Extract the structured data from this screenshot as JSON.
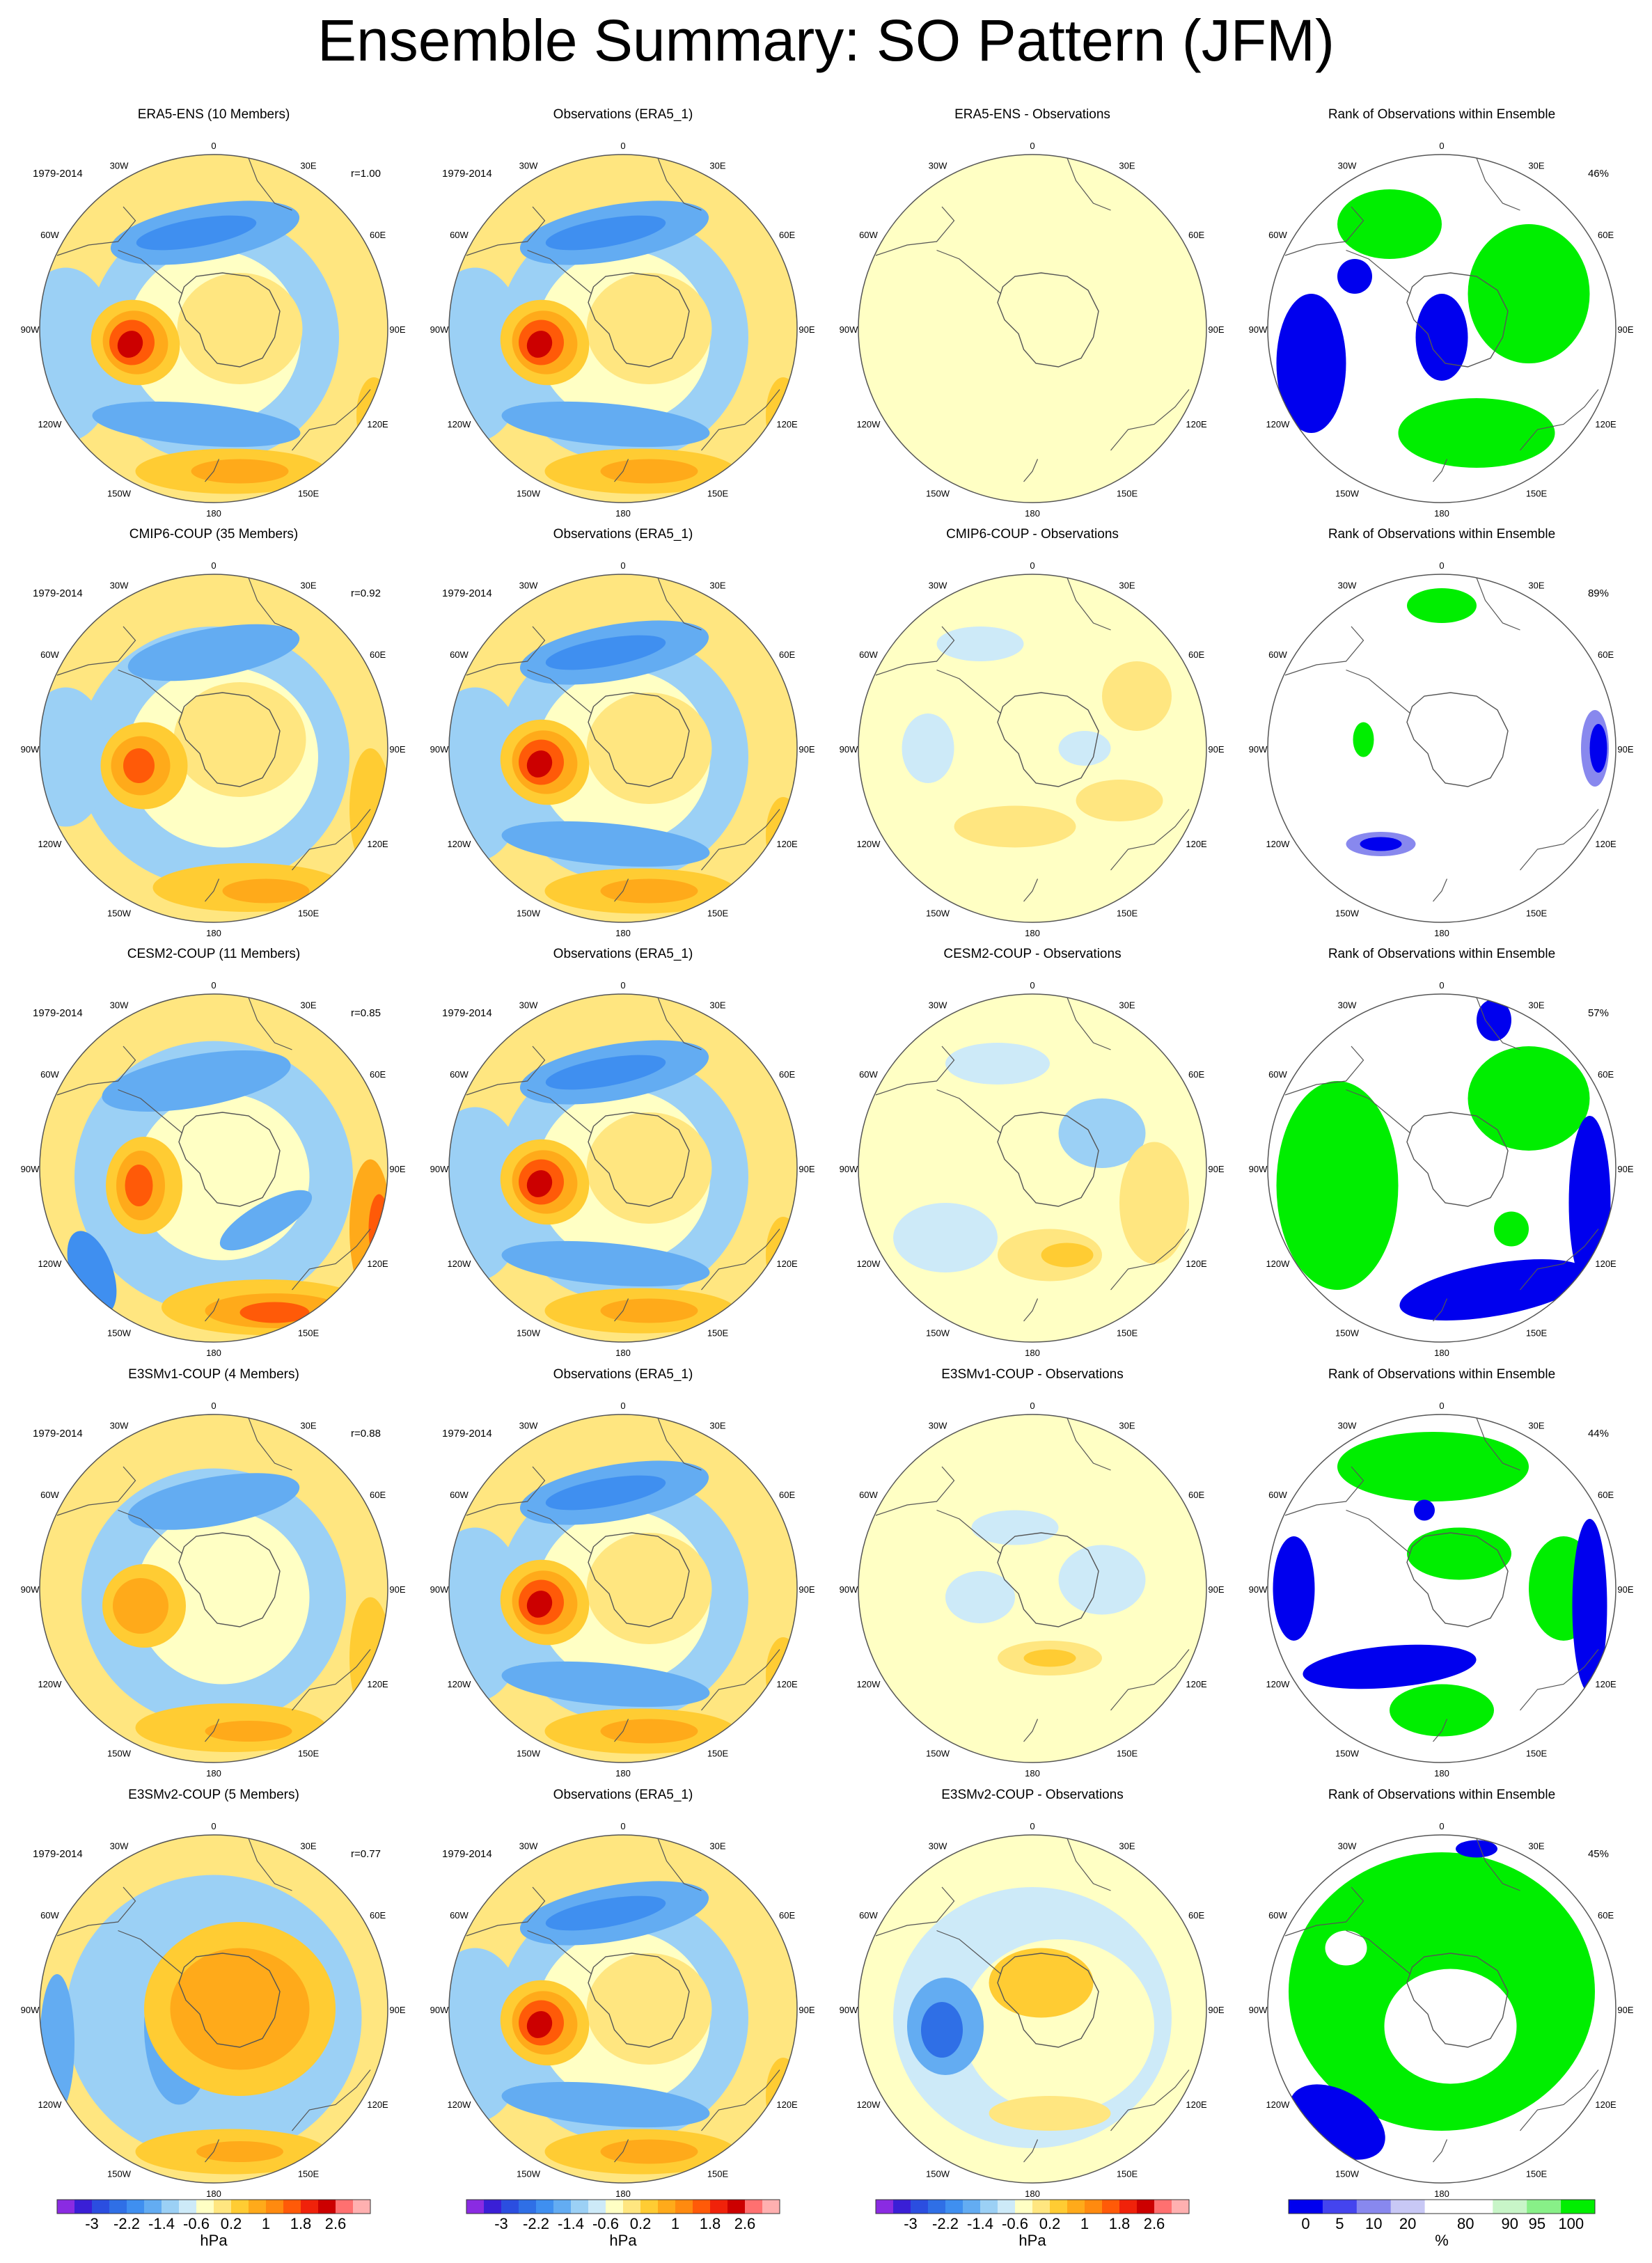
{
  "title": "Ensemble Summary: SO Pattern (JFM)",
  "lon_labels": [
    "0",
    "30E",
    "60E",
    "90E",
    "120E",
    "150E",
    "180",
    "150W",
    "120W",
    "90W",
    "60W",
    "30W"
  ],
  "colors": {
    "land_outline": "#555555",
    "ocean_bg": "#ffffc4",
    "neutral_rank": "#ffffff"
  },
  "rows": [
    {
      "model": "ERA5-ENS",
      "panels": [
        {
          "type": "model",
          "title": "ERA5-ENS (10 Members)",
          "period": "1979-2014",
          "corr": "r=1.00",
          "pattern": "obs"
        },
        {
          "type": "obs",
          "title": "Observations (ERA5_1)",
          "period": "1979-2014",
          "pattern": "obs"
        },
        {
          "type": "diff",
          "title": "ERA5-ENS - Observations",
          "pattern": "zero"
        },
        {
          "type": "rank",
          "title": "Rank of Observations within Ensemble",
          "pct": "46%",
          "pattern": "rank_a"
        }
      ]
    },
    {
      "model": "CMIP6-COUP",
      "panels": [
        {
          "type": "model",
          "title": "CMIP6-COUP (35 Members)",
          "period": "1979-2014",
          "corr": "r=0.92",
          "pattern": "cmip6"
        },
        {
          "type": "obs",
          "title": "Observations (ERA5_1)",
          "period": "1979-2014",
          "pattern": "obs"
        },
        {
          "type": "diff",
          "title": "CMIP6-COUP - Observations",
          "pattern": "diff_a"
        },
        {
          "type": "rank",
          "title": "Rank of Observations within Ensemble",
          "pct": "89%",
          "pattern": "rank_b"
        }
      ]
    },
    {
      "model": "CESM2-COUP",
      "panels": [
        {
          "type": "model",
          "title": "CESM2-COUP (11 Members)",
          "period": "1979-2014",
          "corr": "r=0.85",
          "pattern": "cesm2"
        },
        {
          "type": "obs",
          "title": "Observations (ERA5_1)",
          "period": "1979-2014",
          "pattern": "obs"
        },
        {
          "type": "diff",
          "title": "CESM2-COUP - Observations",
          "pattern": "diff_b"
        },
        {
          "type": "rank",
          "title": "Rank of Observations within Ensemble",
          "pct": "57%",
          "pattern": "rank_c"
        }
      ]
    },
    {
      "model": "E3SMv1-COUP",
      "panels": [
        {
          "type": "model",
          "title": "E3SMv1-COUP (4 Members)",
          "period": "1979-2014",
          "corr": "r=0.88",
          "pattern": "e3smv1"
        },
        {
          "type": "obs",
          "title": "Observations (ERA5_1)",
          "period": "1979-2014",
          "pattern": "obs"
        },
        {
          "type": "diff",
          "title": "E3SMv1-COUP - Observations",
          "pattern": "diff_c"
        },
        {
          "type": "rank",
          "title": "Rank of Observations within Ensemble",
          "pct": "44%",
          "pattern": "rank_d"
        }
      ]
    },
    {
      "model": "E3SMv2-COUP",
      "panels": [
        {
          "type": "model",
          "title": "E3SMv2-COUP (5 Members)",
          "period": "1979-2014",
          "corr": "r=0.77",
          "pattern": "e3smv2"
        },
        {
          "type": "obs",
          "title": "Observations (ERA5_1)",
          "period": "1979-2014",
          "pattern": "obs"
        },
        {
          "type": "diff",
          "title": "E3SMv2-COUP - Observations",
          "pattern": "diff_d"
        },
        {
          "type": "rank",
          "title": "Rank of Observations within Ensemble",
          "pct": "45%",
          "pattern": "rank_e"
        }
      ]
    }
  ],
  "colorbars": {
    "hpa": {
      "unit": "hPa",
      "tick_labels": [
        "-3",
        "-2.2",
        "-1.4",
        "-0.6",
        "0.2",
        "1",
        "1.8",
        "2.6"
      ],
      "colors": [
        "#8a2be2",
        "#3a1fd6",
        "#2b4ee0",
        "#2f6fe6",
        "#3f8ff0",
        "#63acf2",
        "#9bd0f5",
        "#cdeaf8",
        "#ffffc4",
        "#ffe680",
        "#ffcc33",
        "#ffaa1a",
        "#ff8a0f",
        "#ff5a08",
        "#f0220a",
        "#cc0000",
        "#ff7070",
        "#ffb0b0"
      ]
    },
    "rank": {
      "unit": "%",
      "tick_labels": [
        "0",
        "5",
        "10",
        "20",
        "80",
        "90",
        "95",
        "100"
      ],
      "colors": [
        "#0000ee",
        "#4444ee",
        "#8888ee",
        "#c8c8f5",
        "#ffffff",
        "#ffffff",
        "#c8f5c8",
        "#88f088",
        "#00ee00"
      ]
    }
  },
  "chart_data": [
    {
      "type": "heatmap",
      "title": "Ensemble Summary: SO Pattern (JFM)",
      "description_of_fields": "Southern Hemisphere polar stereographic maps of the SO pattern (sea level pressure, hPa) for each ensemble and observations; difference maps; and rank percentage of observations within ensemble",
      "models": [
        "ERA5-ENS",
        "CMIP6-COUP",
        "CESM2-COUP",
        "E3SMv1-COUP",
        "E3SMv2-COUP"
      ],
      "pattern_correlation": [
        1.0,
        0.92,
        0.85,
        0.88,
        0.77
      ],
      "members": [
        10,
        35,
        11,
        4,
        5
      ],
      "rank_percent": [
        46,
        89,
        57,
        44,
        45
      ],
      "period": "1979-2014",
      "contour_levels_hPa": [
        -3.4,
        -3.0,
        -2.6,
        -2.2,
        -1.8,
        -1.4,
        -1.0,
        -0.6,
        -0.2,
        0.2,
        0.6,
        1.0,
        1.4,
        1.8,
        2.2,
        2.6,
        3.0
      ],
      "rank_levels_percent": [
        0,
        5,
        10,
        20,
        80,
        90,
        95,
        100
      ]
    }
  ]
}
